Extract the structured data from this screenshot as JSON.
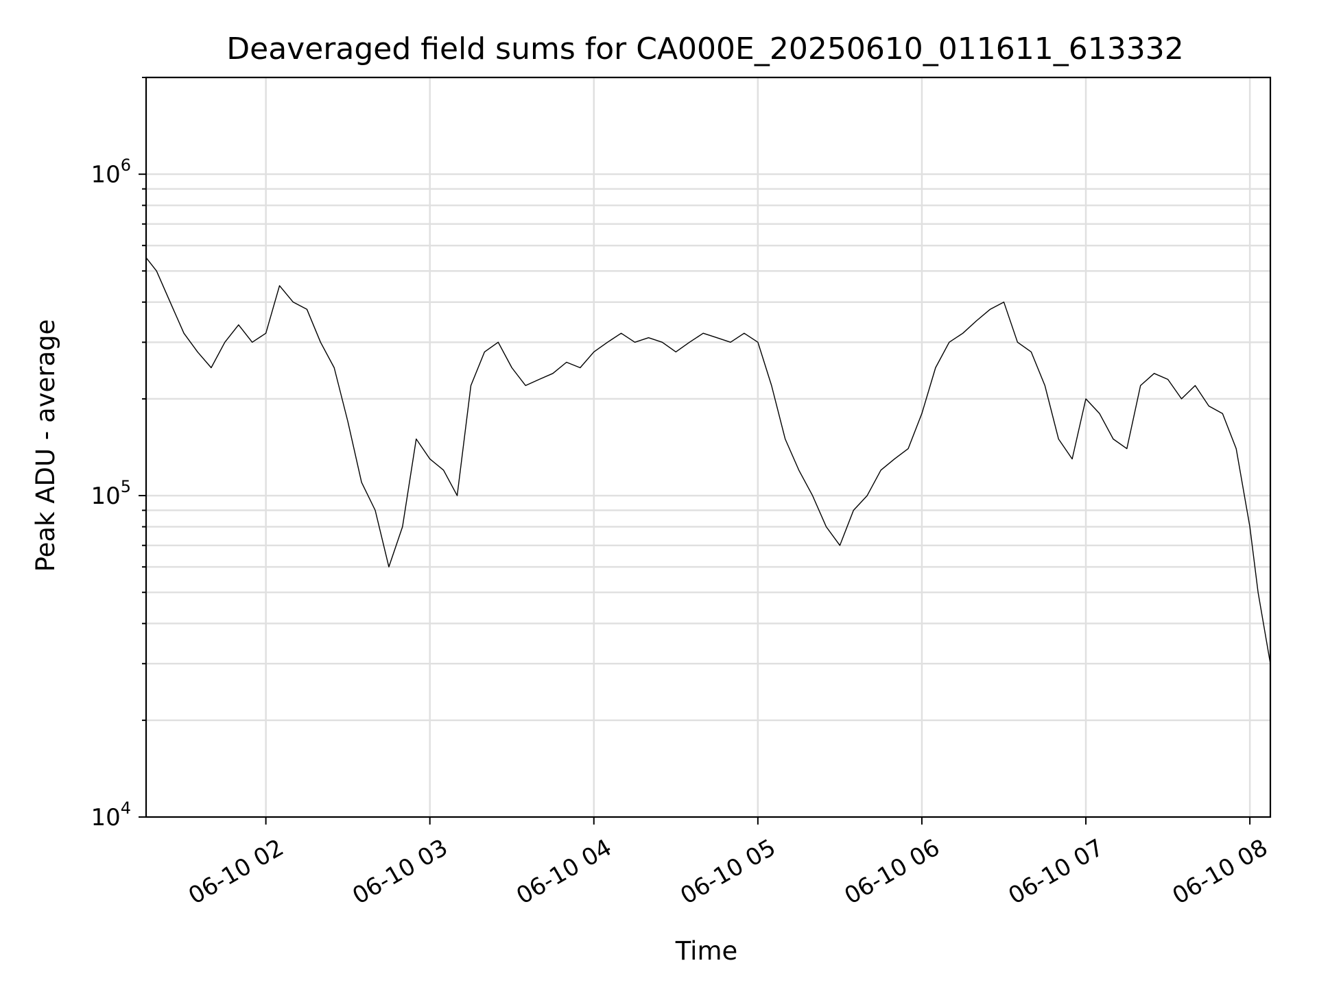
{
  "chart_data": {
    "type": "line",
    "title": "Deaveraged field sums for CA000E_20250610_011611_613332",
    "xlabel": "Time",
    "ylabel": "Peak ADU - average",
    "yscale": "log",
    "ylim": [
      10000,
      2000000
    ],
    "xlim": [
      "2025-06-10T01:16:11",
      "2025-06-10T08:07:30"
    ],
    "grid": true,
    "legend": "none",
    "x_ticks": [
      {
        "value": "2025-06-10T02:00:00",
        "label": "06-10 02"
      },
      {
        "value": "2025-06-10T03:00:00",
        "label": "06-10 03"
      },
      {
        "value": "2025-06-10T04:00:00",
        "label": "06-10 04"
      },
      {
        "value": "2025-06-10T05:00:00",
        "label": "06-10 05"
      },
      {
        "value": "2025-06-10T06:00:00",
        "label": "06-10 06"
      },
      {
        "value": "2025-06-10T07:00:00",
        "label": "06-10 07"
      },
      {
        "value": "2025-06-10T08:00:00",
        "label": "06-10 08"
      }
    ],
    "y_ticks": [
      {
        "value": 10000,
        "base": "10",
        "exp": "4"
      },
      {
        "value": 100000,
        "base": "10",
        "exp": "5"
      },
      {
        "value": 1000000,
        "base": "10",
        "exp": "6"
      }
    ],
    "line_color": "#000000",
    "series": [
      {
        "x": [
          "2025-06-10T01:16:11",
          "2025-06-10T01:20:00",
          "2025-06-10T01:25:00",
          "2025-06-10T01:30:00",
          "2025-06-10T01:35:00",
          "2025-06-10T01:40:00",
          "2025-06-10T01:45:00",
          "2025-06-10T01:50:00",
          "2025-06-10T01:55:00",
          "2025-06-10T02:00:00",
          "2025-06-10T02:05:00",
          "2025-06-10T02:10:00",
          "2025-06-10T02:15:00",
          "2025-06-10T02:20:00",
          "2025-06-10T02:25:00",
          "2025-06-10T02:30:00",
          "2025-06-10T02:35:00",
          "2025-06-10T02:40:00",
          "2025-06-10T02:45:00",
          "2025-06-10T02:50:00",
          "2025-06-10T02:55:00",
          "2025-06-10T03:00:00",
          "2025-06-10T03:05:00",
          "2025-06-10T03:10:00",
          "2025-06-10T03:15:00",
          "2025-06-10T03:20:00",
          "2025-06-10T03:25:00",
          "2025-06-10T03:30:00",
          "2025-06-10T03:35:00",
          "2025-06-10T03:40:00",
          "2025-06-10T03:45:00",
          "2025-06-10T03:50:00",
          "2025-06-10T03:55:00",
          "2025-06-10T04:00:00",
          "2025-06-10T04:05:00",
          "2025-06-10T04:10:00",
          "2025-06-10T04:15:00",
          "2025-06-10T04:20:00",
          "2025-06-10T04:25:00",
          "2025-06-10T04:30:00",
          "2025-06-10T04:35:00",
          "2025-06-10T04:40:00",
          "2025-06-10T04:45:00",
          "2025-06-10T04:50:00",
          "2025-06-10T04:55:00",
          "2025-06-10T05:00:00",
          "2025-06-10T05:05:00",
          "2025-06-10T05:10:00",
          "2025-06-10T05:15:00",
          "2025-06-10T05:20:00",
          "2025-06-10T05:25:00",
          "2025-06-10T05:30:00",
          "2025-06-10T05:35:00",
          "2025-06-10T05:40:00",
          "2025-06-10T05:45:00",
          "2025-06-10T05:50:00",
          "2025-06-10T05:55:00",
          "2025-06-10T06:00:00",
          "2025-06-10T06:05:00",
          "2025-06-10T06:10:00",
          "2025-06-10T06:15:00",
          "2025-06-10T06:20:00",
          "2025-06-10T06:25:00",
          "2025-06-10T06:30:00",
          "2025-06-10T06:35:00",
          "2025-06-10T06:40:00",
          "2025-06-10T06:45:00",
          "2025-06-10T06:50:00",
          "2025-06-10T06:55:00",
          "2025-06-10T07:00:00",
          "2025-06-10T07:05:00",
          "2025-06-10T07:10:00",
          "2025-06-10T07:15:00",
          "2025-06-10T07:20:00",
          "2025-06-10T07:25:00",
          "2025-06-10T07:30:00",
          "2025-06-10T07:35:00",
          "2025-06-10T07:40:00",
          "2025-06-10T07:45:00",
          "2025-06-10T07:50:00",
          "2025-06-10T07:55:00",
          "2025-06-10T08:00:00",
          "2025-06-10T08:03:00",
          "2025-06-10T08:07:30"
        ],
        "y": [
          550000,
          500000,
          400000,
          320000,
          280000,
          250000,
          300000,
          340000,
          300000,
          320000,
          450000,
          400000,
          380000,
          300000,
          250000,
          170000,
          110000,
          90000,
          60000,
          80000,
          150000,
          130000,
          120000,
          100000,
          220000,
          280000,
          300000,
          250000,
          220000,
          230000,
          240000,
          260000,
          250000,
          280000,
          300000,
          320000,
          300000,
          310000,
          300000,
          280000,
          300000,
          320000,
          310000,
          300000,
          320000,
          300000,
          220000,
          150000,
          120000,
          100000,
          80000,
          70000,
          90000,
          100000,
          120000,
          130000,
          140000,
          180000,
          250000,
          300000,
          320000,
          350000,
          380000,
          400000,
          300000,
          280000,
          220000,
          150000,
          130000,
          200000,
          180000,
          150000,
          140000,
          220000,
          240000,
          230000,
          200000,
          220000,
          190000,
          180000,
          140000,
          80000,
          50000,
          30000
        ]
      }
    ]
  }
}
